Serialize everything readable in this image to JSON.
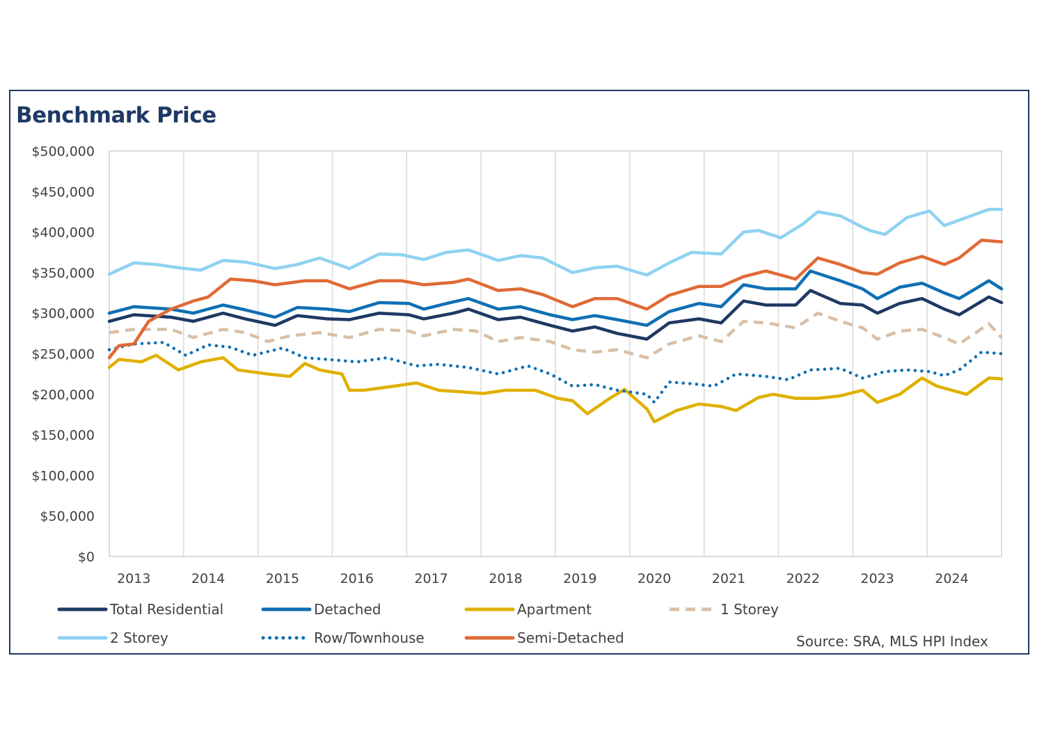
{
  "chart_data": {
    "type": "line",
    "title": "Benchmark Price",
    "source": "Source: SRA, MLS HPI Index",
    "xlabel": "",
    "ylabel": "",
    "ylim": [
      0,
      500000
    ],
    "yticks": [
      0,
      50000,
      100000,
      150000,
      200000,
      250000,
      300000,
      350000,
      400000,
      450000,
      500000
    ],
    "ytick_labels": [
      "$0",
      "$50,000",
      "$100,000",
      "$150,000",
      "$200,000",
      "$250,000",
      "$300,000",
      "$350,000",
      "$400,000",
      "$450,000",
      "$500,000"
    ],
    "xlim": [
      2012.67,
      2024.67
    ],
    "xgrid": [
      2013.67,
      2014.67,
      2015.67,
      2016.67,
      2017.67,
      2018.67,
      2019.67,
      2020.67,
      2021.67,
      2022.67,
      2023.67
    ],
    "xtick_labels": [
      "2013",
      "2014",
      "2015",
      "2016",
      "2017",
      "2018",
      "2019",
      "2020",
      "2021",
      "2022",
      "2023",
      "2024"
    ],
    "xtick_positions": [
      2013.0,
      2014.0,
      2015.0,
      2016.0,
      2017.0,
      2018.0,
      2019.0,
      2020.0,
      2021.0,
      2022.0,
      2023.0,
      2024.0
    ],
    "grid": "vertical",
    "legend_position": "bottom",
    "series": [
      {
        "name": "Total Residential",
        "color": "#1f3864",
        "style": "solid",
        "x": [
          2012.67,
          2013.0,
          2013.5,
          2013.8,
          2014.2,
          2014.5,
          2014.9,
          2015.2,
          2015.6,
          2015.9,
          2016.3,
          2016.7,
          2016.9,
          2017.3,
          2017.5,
          2017.9,
          2018.2,
          2018.6,
          2018.9,
          2019.2,
          2019.5,
          2019.9,
          2020.2,
          2020.6,
          2020.9,
          2021.2,
          2021.5,
          2021.9,
          2022.1,
          2022.5,
          2022.8,
          2023.0,
          2023.3,
          2023.6,
          2023.9,
          2024.1,
          2024.5,
          2024.67
        ],
        "values": [
          290000,
          298000,
          295000,
          290000,
          300000,
          293000,
          285000,
          297000,
          293000,
          292000,
          300000,
          298000,
          293000,
          300000,
          305000,
          292000,
          295000,
          285000,
          278000,
          283000,
          275000,
          268000,
          288000,
          293000,
          288000,
          315000,
          310000,
          310000,
          328000,
          312000,
          310000,
          300000,
          312000,
          318000,
          305000,
          298000,
          320000,
          313000
        ]
      },
      {
        "name": "Detached",
        "color": "#0f6fb4",
        "style": "solid",
        "x": [
          2012.67,
          2013.0,
          2013.5,
          2013.8,
          2014.2,
          2014.5,
          2014.9,
          2015.2,
          2015.6,
          2015.9,
          2016.3,
          2016.7,
          2016.9,
          2017.3,
          2017.5,
          2017.9,
          2018.2,
          2018.6,
          2018.9,
          2019.2,
          2019.5,
          2019.9,
          2020.2,
          2020.6,
          2020.9,
          2021.2,
          2021.5,
          2021.9,
          2022.1,
          2022.5,
          2022.8,
          2023.0,
          2023.3,
          2023.6,
          2023.9,
          2024.1,
          2024.5,
          2024.67
        ],
        "values": [
          300000,
          308000,
          305000,
          300000,
          310000,
          304000,
          295000,
          307000,
          305000,
          302000,
          313000,
          312000,
          305000,
          314000,
          318000,
          305000,
          308000,
          298000,
          292000,
          297000,
          292000,
          285000,
          302000,
          312000,
          308000,
          335000,
          330000,
          330000,
          352000,
          340000,
          330000,
          318000,
          332000,
          337000,
          325000,
          318000,
          340000,
          330000
        ]
      },
      {
        "name": "Apartment",
        "color": "#e0b000",
        "style": "solid",
        "x": [
          2012.67,
          2012.8,
          2013.1,
          2013.3,
          2013.6,
          2013.9,
          2014.2,
          2014.4,
          2014.8,
          2015.1,
          2015.3,
          2015.5,
          2015.8,
          2015.9,
          2016.1,
          2016.5,
          2016.8,
          2017.1,
          2017.4,
          2017.7,
          2018.0,
          2018.4,
          2018.7,
          2018.9,
          2019.1,
          2019.4,
          2019.6,
          2019.9,
          2020.0,
          2020.3,
          2020.6,
          2020.9,
          2021.1,
          2021.4,
          2021.6,
          2021.9,
          2022.2,
          2022.5,
          2022.8,
          2023.0,
          2023.3,
          2023.6,
          2023.8,
          2024.0,
          2024.2,
          2024.5,
          2024.67
        ],
        "values": [
          233000,
          243000,
          240000,
          248000,
          230000,
          240000,
          245000,
          230000,
          225000,
          222000,
          238000,
          230000,
          225000,
          205000,
          205000,
          210000,
          214000,
          205000,
          203000,
          201000,
          205000,
          205000,
          195000,
          192000,
          176000,
          195000,
          206000,
          182000,
          166000,
          180000,
          188000,
          185000,
          180000,
          196000,
          200000,
          195000,
          195000,
          198000,
          205000,
          190000,
          200000,
          220000,
          210000,
          205000,
          200000,
          220000,
          219000
        ]
      },
      {
        "name": "1 Storey",
        "color": "#d9bfa6",
        "style": "dashed",
        "x": [
          2012.67,
          2013.0,
          2013.5,
          2013.8,
          2014.2,
          2014.5,
          2014.8,
          2015.1,
          2015.5,
          2015.9,
          2016.3,
          2016.7,
          2016.9,
          2017.3,
          2017.6,
          2017.9,
          2018.2,
          2018.6,
          2018.9,
          2019.2,
          2019.5,
          2019.9,
          2020.2,
          2020.6,
          2020.9,
          2021.2,
          2021.5,
          2021.9,
          2022.2,
          2022.5,
          2022.8,
          2023.0,
          2023.3,
          2023.6,
          2023.9,
          2024.1,
          2024.5,
          2024.67
        ],
        "values": [
          276000,
          280000,
          280000,
          270000,
          280000,
          276000,
          265000,
          272000,
          276000,
          270000,
          280000,
          278000,
          272000,
          280000,
          278000,
          265000,
          270000,
          265000,
          255000,
          252000,
          255000,
          245000,
          262000,
          272000,
          265000,
          290000,
          288000,
          282000,
          300000,
          290000,
          282000,
          268000,
          278000,
          280000,
          270000,
          262000,
          287000,
          270000
        ]
      },
      {
        "name": "2 Storey",
        "color": "#8fd2f2",
        "style": "solid",
        "x": [
          2012.67,
          2013.0,
          2013.3,
          2013.6,
          2013.9,
          2014.2,
          2014.5,
          2014.9,
          2015.2,
          2015.5,
          2015.9,
          2016.3,
          2016.6,
          2016.9,
          2017.2,
          2017.5,
          2017.9,
          2018.2,
          2018.5,
          2018.9,
          2019.2,
          2019.5,
          2019.9,
          2020.2,
          2020.5,
          2020.9,
          2021.2,
          2021.4,
          2021.7,
          2022.0,
          2022.2,
          2022.5,
          2022.8,
          2022.9,
          2023.1,
          2023.4,
          2023.7,
          2023.9,
          2024.2,
          2024.5,
          2024.67
        ],
        "values": [
          348000,
          362000,
          360000,
          356000,
          353000,
          365000,
          363000,
          355000,
          360000,
          368000,
          355000,
          373000,
          372000,
          366000,
          375000,
          378000,
          365000,
          371000,
          368000,
          350000,
          356000,
          358000,
          347000,
          362000,
          375000,
          373000,
          400000,
          402000,
          393000,
          410000,
          425000,
          420000,
          406000,
          402000,
          397000,
          418000,
          426000,
          408000,
          418000,
          428000,
          428000
        ]
      },
      {
        "name": "Row/Townhouse",
        "color": "#0f6fb4",
        "style": "dotted",
        "x": [
          2012.67,
          2013.0,
          2013.4,
          2013.7,
          2014.0,
          2014.3,
          2014.6,
          2015.0,
          2015.3,
          2015.6,
          2016.0,
          2016.4,
          2016.8,
          2017.1,
          2017.5,
          2017.9,
          2018.3,
          2018.6,
          2018.9,
          2019.2,
          2019.5,
          2019.9,
          2020.0,
          2020.2,
          2020.5,
          2020.8,
          2021.1,
          2021.5,
          2021.8,
          2022.1,
          2022.5,
          2022.8,
          2023.1,
          2023.4,
          2023.7,
          2023.9,
          2024.1,
          2024.4,
          2024.67
        ],
        "values": [
          255000,
          262000,
          264000,
          248000,
          261000,
          258000,
          248000,
          257000,
          245000,
          243000,
          240000,
          245000,
          235000,
          237000,
          233000,
          225000,
          235000,
          225000,
          210000,
          212000,
          205000,
          200000,
          190000,
          215000,
          213000,
          210000,
          225000,
          222000,
          218000,
          230000,
          232000,
          220000,
          228000,
          230000,
          228000,
          223000,
          230000,
          252000,
          250000
        ]
      },
      {
        "name": "Semi-Detached",
        "color": "#e06a36",
        "style": "solid",
        "x": [
          2012.67,
          2012.8,
          2013.0,
          2013.2,
          2013.5,
          2013.8,
          2014.0,
          2014.3,
          2014.6,
          2014.9,
          2015.3,
          2015.6,
          2015.9,
          2016.3,
          2016.6,
          2016.9,
          2017.3,
          2017.5,
          2017.9,
          2018.2,
          2018.5,
          2018.9,
          2019.2,
          2019.5,
          2019.9,
          2020.2,
          2020.6,
          2020.9,
          2021.2,
          2021.5,
          2021.9,
          2022.2,
          2022.5,
          2022.8,
          2023.0,
          2023.3,
          2023.6,
          2023.9,
          2024.1,
          2024.4,
          2024.67
        ],
        "values": [
          245000,
          260000,
          262000,
          290000,
          305000,
          315000,
          320000,
          342000,
          340000,
          335000,
          340000,
          340000,
          330000,
          340000,
          340000,
          335000,
          338000,
          342000,
          328000,
          330000,
          323000,
          308000,
          318000,
          318000,
          305000,
          322000,
          333000,
          333000,
          345000,
          352000,
          342000,
          368000,
          360000,
          350000,
          348000,
          362000,
          370000,
          360000,
          368000,
          390000,
          388000
        ]
      }
    ]
  }
}
